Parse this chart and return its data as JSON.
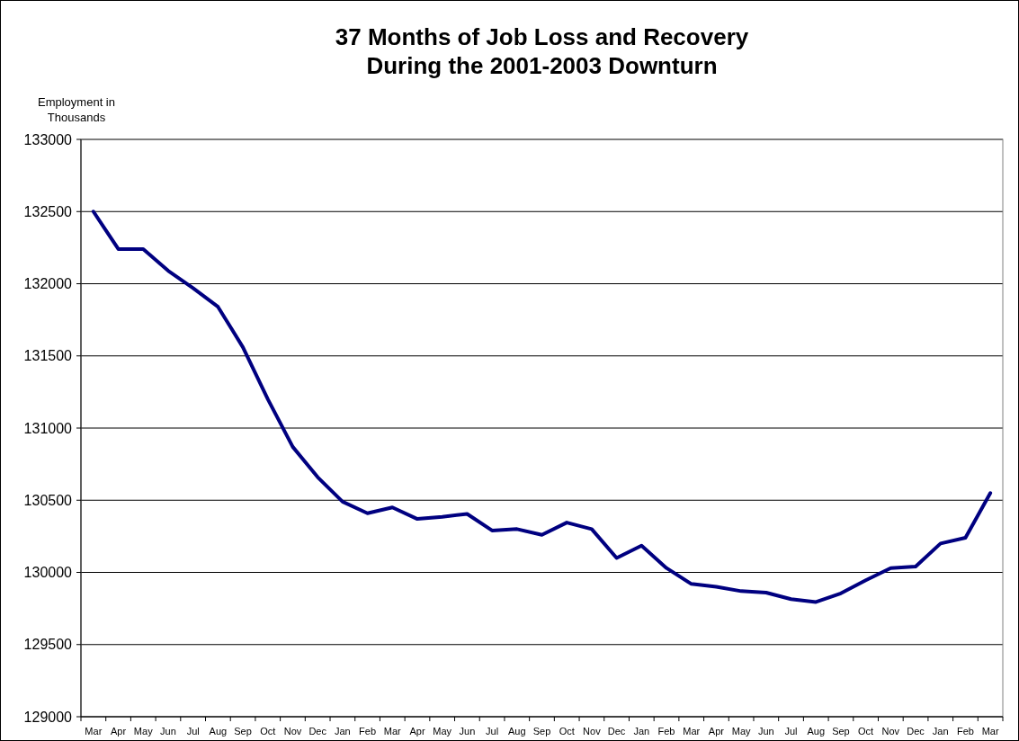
{
  "chart_data": {
    "type": "line",
    "title": "37 Months of Job Loss and Recovery\nDuring the 2001-2003 Downturn",
    "ylabel": "Employment in\nThousands",
    "categories": [
      "Mar",
      "Apr",
      "May",
      "Jun",
      "Jul",
      "Aug",
      "Sep",
      "Oct",
      "Nov",
      "Dec",
      "Jan",
      "Feb",
      "Mar",
      "Apr",
      "May",
      "Jun",
      "Jul",
      "Aug",
      "Sep",
      "Oct",
      "Nov",
      "Dec",
      "Jan",
      "Feb",
      "Mar",
      "Apr",
      "May",
      "Jun",
      "Jul",
      "Aug",
      "Sep",
      "Oct",
      "Nov",
      "Dec",
      "Jan",
      "Feb",
      "Mar"
    ],
    "series": [
      {
        "color": "#000080",
        "values": [
          132500,
          132240,
          132240,
          132090,
          131970,
          131840,
          131560,
          131200,
          130870,
          130660,
          130490,
          130410,
          130450,
          130370,
          130385,
          130405,
          130290,
          130300,
          130260,
          130345,
          130300,
          130100,
          130185,
          130030,
          129920,
          129900,
          129870,
          129860,
          129815,
          129795,
          129855,
          129945,
          130030,
          130040,
          130200,
          130240,
          130550
        ]
      }
    ],
    "ylim": [
      129000,
      133000
    ],
    "yticks": [
      129000,
      129500,
      130000,
      130500,
      131000,
      131500,
      132000,
      132500,
      133000
    ],
    "grid": "y",
    "marker": "none",
    "line_style": "solid"
  }
}
